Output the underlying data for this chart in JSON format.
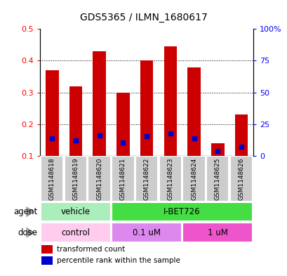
{
  "title": "GDS5365 / ILMN_1680617",
  "samples": [
    "GSM1148618",
    "GSM1148619",
    "GSM1148620",
    "GSM1148621",
    "GSM1148622",
    "GSM1148623",
    "GSM1148624",
    "GSM1148625",
    "GSM1148626"
  ],
  "transformed_counts": [
    0.37,
    0.32,
    0.43,
    0.3,
    0.4,
    0.445,
    0.378,
    0.14,
    0.23
  ],
  "percentile_ranks": [
    0.155,
    0.148,
    0.165,
    0.143,
    0.163,
    0.17,
    0.155,
    0.115,
    0.128
  ],
  "bar_bottom": 0.1,
  "ylim_left": [
    0.1,
    0.5
  ],
  "ylim_right": [
    0,
    100
  ],
  "yticks_left": [
    0.1,
    0.2,
    0.3,
    0.4,
    0.5
  ],
  "yticks_right": [
    0,
    25,
    50,
    75,
    100
  ],
  "ytick_labels_right": [
    "0",
    "25",
    "50",
    "75",
    "100%"
  ],
  "bar_color": "#cc0000",
  "percentile_color": "#0000cc",
  "agent_labels": [
    {
      "label": "vehicle",
      "start": 0,
      "end": 3,
      "color": "#aaeebb"
    },
    {
      "label": "I-BET726",
      "start": 3,
      "end": 9,
      "color": "#44dd44"
    }
  ],
  "dose_labels": [
    {
      "label": "control",
      "start": 0,
      "end": 3,
      "color": "#ffccee"
    },
    {
      "label": "0.1 uM",
      "start": 3,
      "end": 6,
      "color": "#dd88ee"
    },
    {
      "label": "1 uM",
      "start": 6,
      "end": 9,
      "color": "#ee55cc"
    }
  ],
  "legend_items": [
    {
      "label": "transformed count",
      "color": "#cc0000"
    },
    {
      "label": "percentile rank within the sample",
      "color": "#0000cc"
    }
  ],
  "label_bg_color": "#cccccc",
  "bar_width": 0.55,
  "blue_square_size": 25
}
